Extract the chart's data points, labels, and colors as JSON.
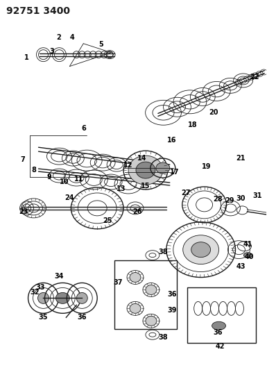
{
  "title": "92751 3400",
  "bg_color": "#ffffff",
  "line_color": "#1a1a1a",
  "title_fontsize": 10,
  "label_fontsize": 7,
  "fig_width": 3.85,
  "fig_height": 5.33,
  "dpi": 100
}
